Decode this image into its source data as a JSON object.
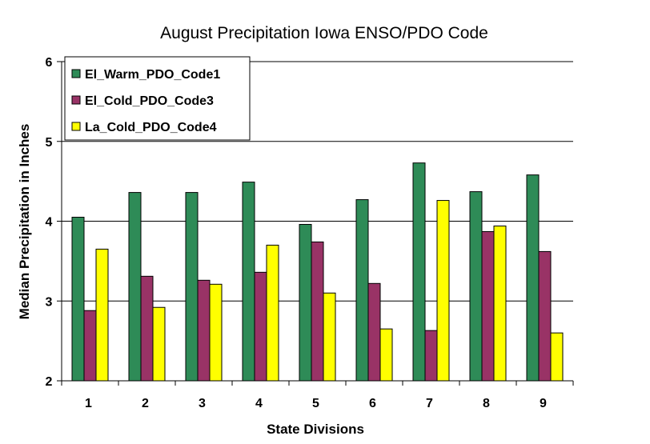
{
  "chart_data": {
    "type": "bar",
    "title": "August Precipitation Iowa ENSO/PDO Code",
    "xlabel": "State Divisions",
    "ylabel": "Median Precipitation in Inches",
    "categories": [
      "1",
      "2",
      "3",
      "4",
      "5",
      "6",
      "7",
      "8",
      "9"
    ],
    "ylim": [
      2,
      6
    ],
    "yticks": [
      "2",
      "3",
      "4",
      "5",
      "6"
    ],
    "grid": "horizontal",
    "legend_position": "top-left",
    "series": [
      {
        "name": "El_Warm_PDO_Code1",
        "color": "#2e8b57",
        "values": [
          4.05,
          4.36,
          4.36,
          4.49,
          3.96,
          4.27,
          4.73,
          4.37,
          4.58
        ]
      },
      {
        "name": "El_Cold_PDO_Code3",
        "color": "#993366",
        "values": [
          2.88,
          3.31,
          3.26,
          3.36,
          3.74,
          3.22,
          2.63,
          3.87,
          3.62
        ]
      },
      {
        "name": "La_Cold_PDO_Code4",
        "color": "#ffff00",
        "values": [
          3.65,
          2.92,
          3.21,
          3.7,
          3.1,
          2.65,
          4.26,
          3.94,
          2.6
        ]
      }
    ]
  }
}
